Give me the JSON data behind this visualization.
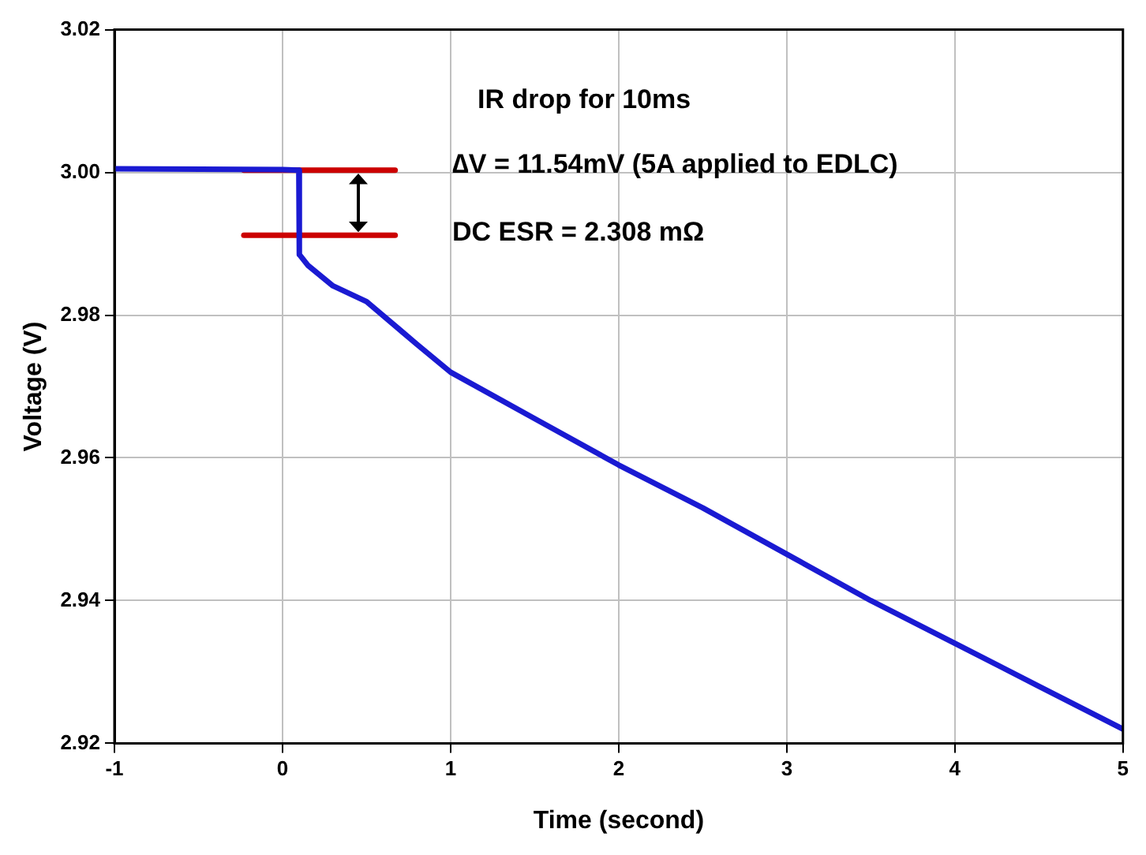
{
  "chart_data": {
    "type": "line",
    "xlabel": "Time (second)",
    "ylabel": "Voltage (V)",
    "xlim": [
      -1,
      5
    ],
    "xticks": [
      -1,
      0,
      1,
      2,
      3,
      4,
      5
    ],
    "ylim": [
      2.92,
      3.02
    ],
    "yticks": [
      {
        "value": 2.92,
        "label": "2.92"
      },
      {
        "value": 2.94,
        "label": "2.94"
      },
      {
        "value": 2.96,
        "label": "2.96"
      },
      {
        "value": 2.98,
        "label": "2.98"
      },
      {
        "value": 3.0,
        "label": "3.00"
      },
      {
        "value": 3.02,
        "label": "3.02"
      }
    ],
    "grid": true,
    "legend": false,
    "marker": "none",
    "line_style": "solid",
    "series": [
      {
        "color": "#1a1ad2",
        "x": [
          -1,
          0.0,
          0.097,
          0.1,
          0.15,
          0.3,
          0.5,
          0.7,
          0.8,
          1,
          1.5,
          2,
          2.5,
          3,
          3.5,
          4,
          4.5,
          5
        ],
        "values": [
          3.0005,
          3.0004,
          3.0003,
          2.9885,
          2.987,
          2.9841,
          2.9819,
          2.9779,
          2.9759,
          2.972,
          2.9655,
          2.959,
          2.953,
          2.9465,
          2.94,
          2.934,
          2.928,
          2.922
        ]
      },
      {
        "color": "#cc0000",
        "x": [
          -0.23,
          0.67
        ],
        "values": [
          3.0003,
          3.0003
        ]
      },
      {
        "color": "#cc0000",
        "x": [
          -0.23,
          0.67
        ],
        "values": [
          2.9912,
          2.9912
        ]
      }
    ],
    "annotations": [
      "IR drop for 10ms",
      "∆V = 11.54mV (5A applied to EDLC)",
      "DC ESR = 2.308 mΩ"
    ]
  }
}
